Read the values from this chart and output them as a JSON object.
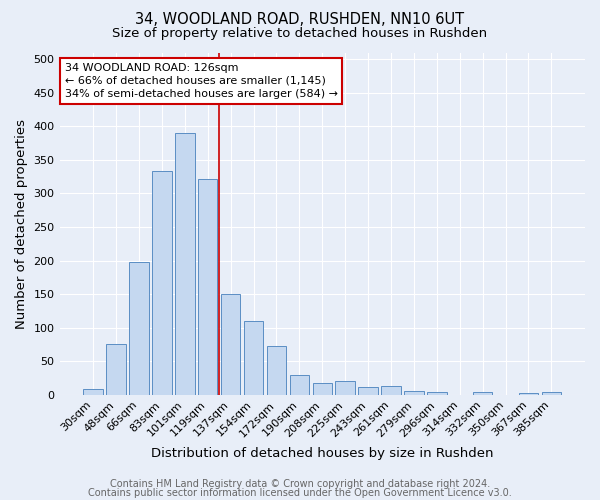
{
  "title_line1": "34, WOODLAND ROAD, RUSHDEN, NN10 6UT",
  "title_line2": "Size of property relative to detached houses in Rushden",
  "xlabel": "Distribution of detached houses by size in Rushden",
  "ylabel": "Number of detached properties",
  "categories": [
    "30sqm",
    "48sqm",
    "66sqm",
    "83sqm",
    "101sqm",
    "119sqm",
    "137sqm",
    "154sqm",
    "172sqm",
    "190sqm",
    "208sqm",
    "225sqm",
    "243sqm",
    "261sqm",
    "279sqm",
    "296sqm",
    "314sqm",
    "332sqm",
    "350sqm",
    "367sqm",
    "385sqm"
  ],
  "values": [
    8,
    75,
    198,
    333,
    390,
    322,
    150,
    110,
    72,
    30,
    17,
    20,
    11,
    13,
    5,
    4,
    0,
    4,
    0,
    3,
    4
  ],
  "bar_color": "#c5d8f0",
  "bar_edge_color": "#5b8ec4",
  "annotation_box_text": "34 WOODLAND ROAD: 126sqm\n← 66% of detached houses are smaller (1,145)\n34% of semi-detached houses are larger (584) →",
  "annotation_box_color": "#ffffff",
  "annotation_box_edge_color": "#cc0000",
  "red_line_x": 5.5,
  "background_color": "#e8eef8",
  "plot_bg_color": "#e8eef8",
  "footer_line1": "Contains HM Land Registry data © Crown copyright and database right 2024.",
  "footer_line2": "Contains public sector information licensed under the Open Government Licence v3.0.",
  "ylim": [
    0,
    510
  ],
  "yticks": [
    0,
    50,
    100,
    150,
    200,
    250,
    300,
    350,
    400,
    450,
    500
  ],
  "grid_color": "#ffffff",
  "title_fontsize": 10.5,
  "subtitle_fontsize": 9.5,
  "axis_label_fontsize": 9.5,
  "tick_fontsize": 8,
  "annotation_fontsize": 8,
  "footer_fontsize": 7
}
